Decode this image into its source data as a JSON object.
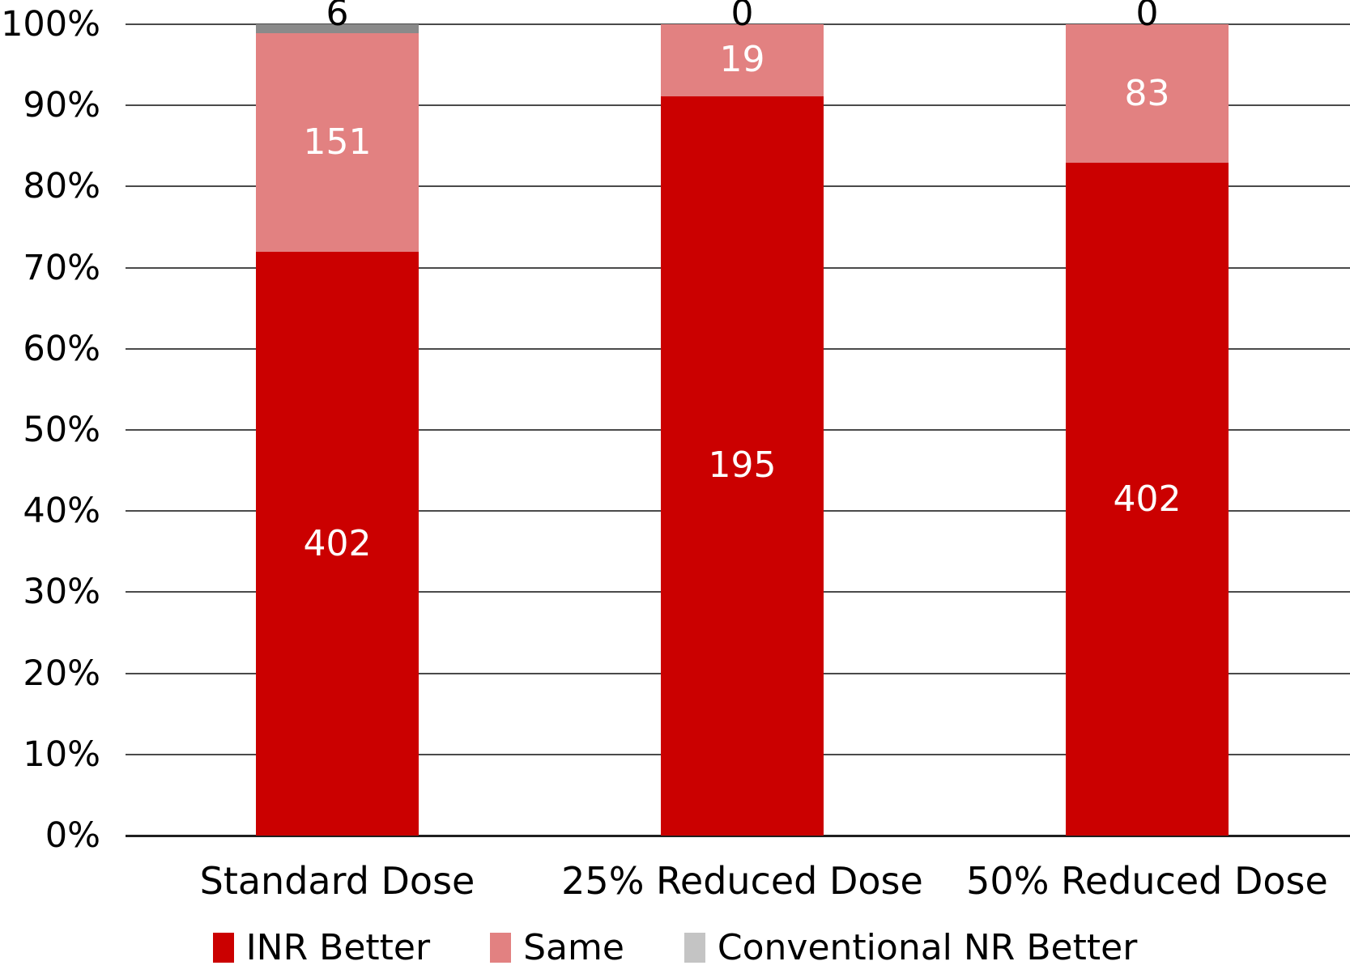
{
  "chart_data": {
    "type": "bar",
    "subtype": "stacked-100-percent-column",
    "title": "",
    "xlabel": "",
    "ylabel": "",
    "categories": [
      "Standard Dose",
      "25% Reduced Dose",
      "50% Reduced Dose"
    ],
    "series": [
      {
        "name": "INR Better",
        "color": "#CB0000",
        "values": [
          402,
          195,
          402
        ]
      },
      {
        "name": "Same",
        "color": "#E28181",
        "values": [
          151,
          19,
          83
        ]
      },
      {
        "name": "Conventional NR Better",
        "color": "#8A8A8A",
        "legend_color": "#C4C4C4",
        "values": [
          6,
          0,
          0
        ]
      }
    ],
    "data_labels": {
      "shown": true,
      "inside_color": "#FFFFFF",
      "outside_color": "#000000",
      "values_text": [
        [
          "402",
          "195",
          "402"
        ],
        [
          "151",
          "19",
          "83"
        ],
        [
          "6",
          "0",
          "0"
        ]
      ]
    },
    "y_axis": {
      "min": "0%",
      "max": "100%",
      "tick_labels": [
        "0%",
        "10%",
        "20%",
        "30%",
        "40%",
        "50%",
        "60%",
        "70%",
        "80%",
        "90%",
        "100%"
      ],
      "grid": true
    },
    "legend": {
      "position": "bottom",
      "entries": [
        "INR Better",
        "Same",
        "Conventional NR Better"
      ]
    }
  }
}
